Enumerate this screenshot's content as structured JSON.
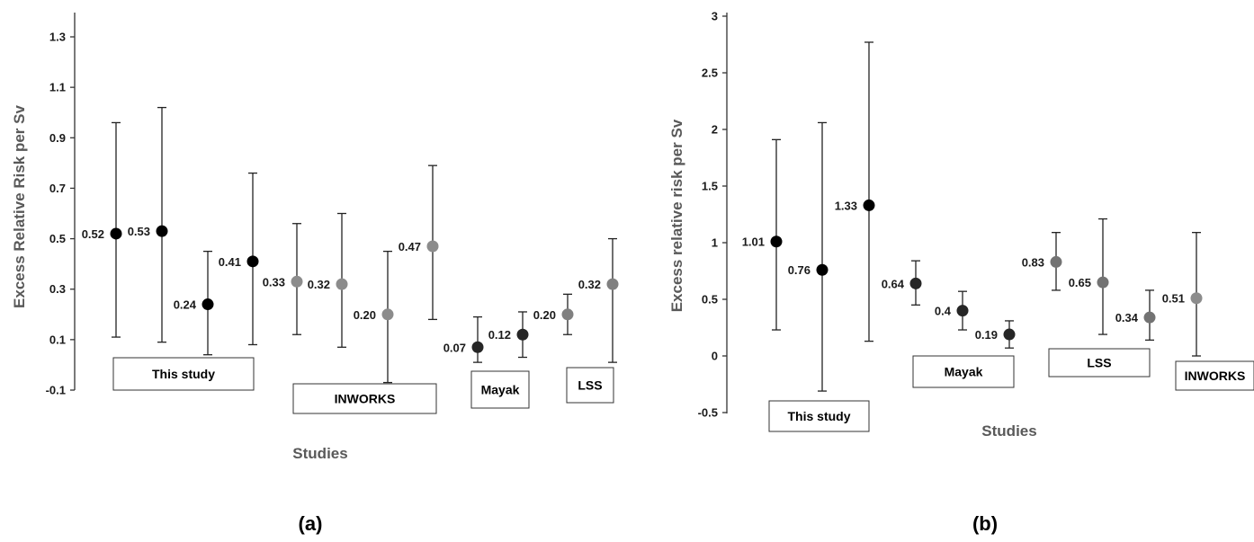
{
  "chart_data": [
    {
      "type": "scatter",
      "panel_label": "(a)",
      "xlabel": "Studies",
      "ylabel": "Excess Relative Risk per Sv",
      "ylim": [
        -0.1,
        1.4
      ],
      "yticks": [
        "-0.1",
        "0.1",
        "0.3",
        "0.5",
        "0.7",
        "0.9",
        "1.1",
        "1.3"
      ],
      "group_labels": [
        "This study",
        "INWORKS",
        "Mayak",
        "LSS"
      ],
      "colors": {
        "This study": "#000000",
        "INWORKS": "#8c8c8c",
        "Mayak": "#262626",
        "LSS": "#808080"
      },
      "points": [
        {
          "label": "0.52",
          "group": "This study",
          "value": 0.52,
          "low": 0.11,
          "high": 0.96
        },
        {
          "label": "0.53",
          "group": "This study",
          "value": 0.53,
          "low": 0.09,
          "high": 1.02
        },
        {
          "label": "0.24",
          "group": "This study",
          "value": 0.24,
          "low": 0.04,
          "high": 0.45
        },
        {
          "label": "0.41",
          "group": "This study",
          "value": 0.41,
          "low": 0.08,
          "high": 0.76
        },
        {
          "label": "0.33",
          "group": "INWORKS",
          "value": 0.33,
          "low": 0.12,
          "high": 0.56
        },
        {
          "label": "0.32",
          "group": "INWORKS",
          "value": 0.32,
          "low": 0.07,
          "high": 0.6
        },
        {
          "label": "0.20",
          "group": "INWORKS",
          "value": 0.2,
          "low": -0.07,
          "high": 0.45
        },
        {
          "label": "0.47",
          "group": "INWORKS",
          "value": 0.47,
          "low": 0.18,
          "high": 0.79
        },
        {
          "label": "0.07",
          "group": "Mayak",
          "value": 0.07,
          "low": 0.01,
          "high": 0.19
        },
        {
          "label": "0.12",
          "group": "Mayak",
          "value": 0.12,
          "low": 0.03,
          "high": 0.21
        },
        {
          "label": "0.20",
          "group": "LSS",
          "value": 0.2,
          "low": 0.12,
          "high": 0.28
        },
        {
          "label": "0.32",
          "group": "LSS",
          "value": 0.32,
          "low": 0.01,
          "high": 0.5
        }
      ]
    },
    {
      "type": "scatter",
      "panel_label": "(b)",
      "xlabel": "Studies",
      "ylabel": "Excess relative risk per Sv",
      "ylim": [
        -0.5,
        3
      ],
      "yticks": [
        "-0.5",
        "0",
        "0.5",
        "1",
        "1.5",
        "2",
        "2.5",
        "3"
      ],
      "group_labels": [
        "This study",
        "Mayak",
        "LSS",
        "INWORKS"
      ],
      "colors": {
        "This study": "#000000",
        "Mayak": "#262626",
        "LSS": "#737373",
        "INWORKS": "#8c8c8c"
      },
      "points": [
        {
          "label": "1.01",
          "group": "This study",
          "value": 1.01,
          "low": 0.23,
          "high": 1.91
        },
        {
          "label": "0.76",
          "group": "This study",
          "value": 0.76,
          "low": -0.31,
          "high": 2.06
        },
        {
          "label": "1.33",
          "group": "This study",
          "value": 1.33,
          "low": 0.13,
          "high": 2.77
        },
        {
          "label": "0.64",
          "group": "Mayak",
          "value": 0.64,
          "low": 0.45,
          "high": 0.84
        },
        {
          "label": "0.4",
          "group": "Mayak",
          "value": 0.4,
          "low": 0.23,
          "high": 0.57
        },
        {
          "label": "0.19",
          "group": "Mayak",
          "value": 0.19,
          "low": 0.07,
          "high": 0.31
        },
        {
          "label": "0.83",
          "group": "LSS",
          "value": 0.83,
          "low": 0.58,
          "high": 1.09
        },
        {
          "label": "0.65",
          "group": "LSS",
          "value": 0.65,
          "low": 0.19,
          "high": 1.21
        },
        {
          "label": "0.34",
          "group": "LSS",
          "value": 0.34,
          "low": 0.14,
          "high": 0.58
        },
        {
          "label": "0.51",
          "group": "INWORKS",
          "value": 0.51,
          "low": 0.0,
          "high": 1.09
        }
      ]
    }
  ]
}
